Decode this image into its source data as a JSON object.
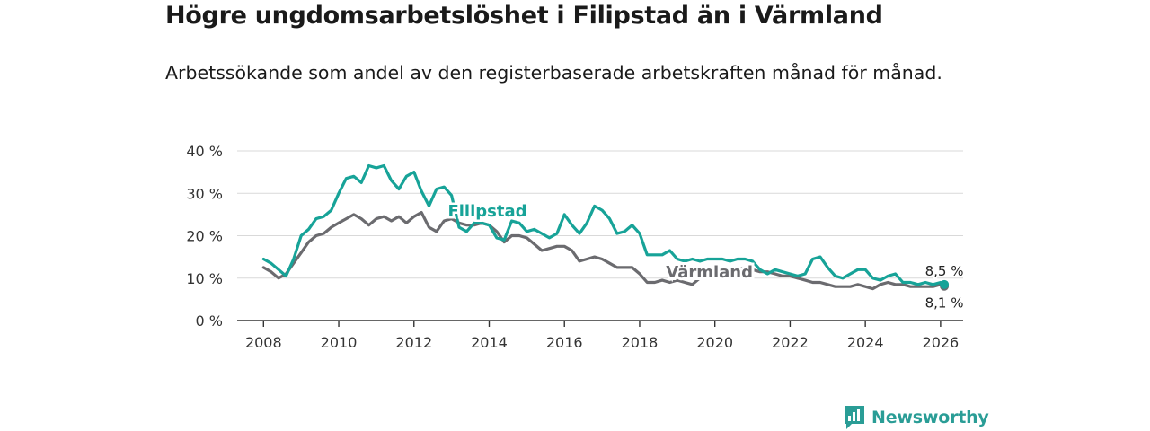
{
  "title": "Högre ungdomsarbetslöshet i Filipstad än i Värmland",
  "subtitle": "Arbetssökande som andel av den registerbaserade arbetskraften månad för månad.",
  "brand": {
    "name": "Newsworthy",
    "color": "#2a9d96",
    "icon": "newsworthy-logo-icon"
  },
  "chart_data": {
    "type": "line",
    "xlabel": "",
    "ylabel": "",
    "xlim": [
      2007.3,
      2026.6
    ],
    "ylim": [
      0,
      40
    ],
    "x_ticks": [
      "2008",
      "2010",
      "2012",
      "2014",
      "2016",
      "2018",
      "2020",
      "2022",
      "2024",
      "2026"
    ],
    "y_ticks": [
      "0 %",
      "10 %",
      "20 %",
      "30 %",
      "40 %"
    ],
    "grid": true,
    "series": [
      {
        "name": "Filipstad",
        "color": "#17a398",
        "end_label": "8,5 %",
        "x": [
          2008.0,
          2008.2,
          2008.4,
          2008.6,
          2008.8,
          2009.0,
          2009.2,
          2009.4,
          2009.6,
          2009.8,
          2010.0,
          2010.2,
          2010.4,
          2010.6,
          2010.8,
          2011.0,
          2011.2,
          2011.4,
          2011.6,
          2011.8,
          2012.0,
          2012.2,
          2012.4,
          2012.6,
          2012.8,
          2013.0,
          2013.2,
          2013.4,
          2013.6,
          2013.8,
          2014.0,
          2014.2,
          2014.4,
          2014.6,
          2014.8,
          2015.0,
          2015.2,
          2015.4,
          2015.6,
          2015.8,
          2016.0,
          2016.2,
          2016.4,
          2016.6,
          2016.8,
          2017.0,
          2017.2,
          2017.4,
          2017.6,
          2017.8,
          2018.0,
          2018.2,
          2018.4,
          2018.6,
          2018.8,
          2019.0,
          2019.2,
          2019.4,
          2019.6,
          2019.8,
          2020.0,
          2020.2,
          2020.4,
          2020.6,
          2020.8,
          2021.0,
          2021.2,
          2021.4,
          2021.6,
          2021.8,
          2022.0,
          2022.2,
          2022.4,
          2022.6,
          2022.8,
          2023.0,
          2023.2,
          2023.4,
          2023.6,
          2023.8,
          2024.0,
          2024.2,
          2024.4,
          2024.6,
          2024.8,
          2025.0,
          2025.2,
          2025.4,
          2025.6,
          2025.8,
          2026.0,
          2026.1
        ],
        "y": [
          14.5,
          13.5,
          12.0,
          10.5,
          14.5,
          20.0,
          21.5,
          24.0,
          24.5,
          26.0,
          30.0,
          33.5,
          34.0,
          32.5,
          36.5,
          36.0,
          36.5,
          33.0,
          31.0,
          34.0,
          35.0,
          30.5,
          27.0,
          31.0,
          31.5,
          29.5,
          22.0,
          21.0,
          23.0,
          23.0,
          22.5,
          19.5,
          19.0,
          23.5,
          23.0,
          21.0,
          21.5,
          20.5,
          19.5,
          20.5,
          25.0,
          22.5,
          20.5,
          23.0,
          27.0,
          26.0,
          24.0,
          20.5,
          21.0,
          22.5,
          20.5,
          15.5,
          15.5,
          15.5,
          16.5,
          14.5,
          14.0,
          14.5,
          14.0,
          14.5,
          14.5,
          14.5,
          14.0,
          14.5,
          14.5,
          14.0,
          12.0,
          11.0,
          12.0,
          11.5,
          11.0,
          10.5,
          11.0,
          14.5,
          15.0,
          12.5,
          10.5,
          10.0,
          11.0,
          12.0,
          12.0,
          10.0,
          9.5,
          10.5,
          11.0,
          9.0,
          9.0,
          8.5,
          9.0,
          8.5,
          9.0,
          8.5
        ]
      },
      {
        "name": "Värmland",
        "color": "#6b6b6f",
        "end_label": "8,1 %",
        "x": [
          2008.0,
          2008.2,
          2008.4,
          2008.6,
          2008.8,
          2009.0,
          2009.2,
          2009.4,
          2009.6,
          2009.8,
          2010.0,
          2010.2,
          2010.4,
          2010.6,
          2010.8,
          2011.0,
          2011.2,
          2011.4,
          2011.6,
          2011.8,
          2012.0,
          2012.2,
          2012.4,
          2012.6,
          2012.8,
          2013.0,
          2013.2,
          2013.4,
          2013.6,
          2013.8,
          2014.0,
          2014.2,
          2014.4,
          2014.6,
          2014.8,
          2015.0,
          2015.2,
          2015.4,
          2015.6,
          2015.8,
          2016.0,
          2016.2,
          2016.4,
          2016.6,
          2016.8,
          2017.0,
          2017.2,
          2017.4,
          2017.6,
          2017.8,
          2018.0,
          2018.2,
          2018.4,
          2018.6,
          2018.8,
          2019.0,
          2019.2,
          2019.4,
          2019.6,
          2019.8,
          2020.0,
          2020.2,
          2020.4,
          2020.6,
          2020.8,
          2021.0,
          2021.2,
          2021.4,
          2021.6,
          2021.8,
          2022.0,
          2022.2,
          2022.4,
          2022.6,
          2022.8,
          2023.0,
          2023.2,
          2023.4,
          2023.6,
          2023.8,
          2024.0,
          2024.2,
          2024.4,
          2024.6,
          2024.8,
          2025.0,
          2025.2,
          2025.4,
          2025.6,
          2025.8,
          2026.0,
          2026.1
        ],
        "y": [
          12.5,
          11.5,
          10.0,
          11.0,
          13.5,
          16.0,
          18.5,
          20.0,
          20.5,
          22.0,
          23.0,
          24.0,
          25.0,
          24.0,
          22.5,
          24.0,
          24.5,
          23.5,
          24.5,
          23.0,
          24.5,
          25.5,
          22.0,
          21.0,
          23.5,
          24.0,
          23.0,
          22.5,
          22.5,
          23.0,
          22.5,
          21.0,
          18.5,
          20.0,
          20.0,
          19.5,
          18.0,
          16.5,
          17.0,
          17.5,
          17.5,
          16.5,
          14.0,
          14.5,
          15.0,
          14.5,
          13.5,
          12.5,
          12.5,
          12.5,
          11.0,
          9.0,
          9.0,
          9.5,
          9.0,
          9.5,
          9.0,
          8.5,
          10.0,
          11.0,
          11.5,
          11.5,
          11.5,
          12.0,
          12.5,
          12.0,
          11.5,
          11.5,
          11.0,
          10.5,
          10.5,
          10.0,
          9.5,
          9.0,
          9.0,
          8.5,
          8.0,
          8.0,
          8.0,
          8.5,
          8.0,
          7.5,
          8.5,
          9.0,
          8.5,
          8.5,
          8.0,
          8.0,
          8.0,
          8.0,
          8.5,
          8.1
        ]
      }
    ]
  }
}
